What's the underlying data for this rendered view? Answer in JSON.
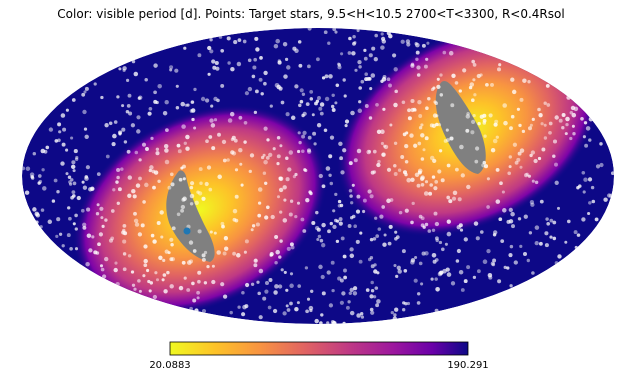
{
  "chart_data": {
    "type": "heatmap",
    "projection": "mollweide",
    "title": "Color: visible period [d]. Points: Target stars, 9.5<H<10.5 2700<T<3300, R<0.4Rsol",
    "colorbar": {
      "min_label": "20.0883",
      "max_label": "190.291",
      "min": 20.0883,
      "max": 190.291,
      "colormap": "plasma_r",
      "orientation": "horizontal"
    },
    "colors": {
      "background_map": "#0d0887",
      "masked_region": "#808080",
      "points": "#ffffff",
      "highlight_point": "#1f77b4"
    },
    "points_note_visible": false
  }
}
